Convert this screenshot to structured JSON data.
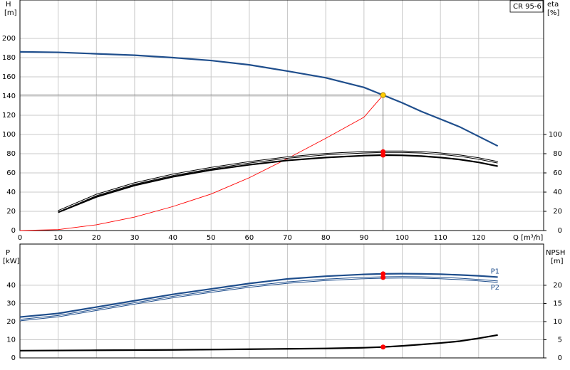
{
  "chart_data": [
    {
      "type": "line",
      "model": "CR 95-6",
      "y_label": "H",
      "y_unit": "[m]",
      "y2_label": "eta",
      "y2_unit": "[%]",
      "x_label": "Q [m³/h]",
      "xlim": [
        0,
        137
      ],
      "xticks": [
        0,
        10,
        20,
        30,
        40,
        50,
        60,
        70,
        80,
        90,
        100,
        110,
        120
      ],
      "ylim": [
        0,
        240
      ],
      "yticks": [
        0,
        20,
        40,
        60,
        80,
        100,
        120,
        140,
        160,
        180,
        200
      ],
      "y2lim": [
        0,
        240
      ],
      "y2ticks": [
        0,
        20,
        40,
        60,
        80,
        100
      ],
      "grid": true,
      "operating_x": 95,
      "crosshair": true,
      "x": [
        0,
        10,
        20,
        30,
        40,
        50,
        60,
        70,
        80,
        90,
        95,
        100,
        105,
        110,
        115,
        120,
        125
      ],
      "series": [
        {
          "color": "#1f4e8c",
          "style": "thick",
          "dot_color": "#ffcc00",
          "values": [
            186,
            185.5,
            184,
            182.5,
            180,
            177,
            172.5,
            166,
            159,
            149,
            141,
            133,
            124,
            116,
            108,
            98,
            88
          ]
        },
        {
          "color": "#ff0000",
          "style": "thin",
          "values": [
            0,
            1,
            6,
            14,
            25,
            38,
            55,
            75,
            96,
            118,
            141,
            null,
            null,
            null,
            null,
            null,
            null
          ]
        },
        {
          "color": "#000000",
          "style": "double",
          "axis": "y2",
          "dot_color": "#ff0000",
          "values": [
            null,
            20,
            37,
            49,
            58,
            65,
            71,
            76,
            79.5,
            81.5,
            82,
            82,
            81.5,
            80,
            78,
            75,
            71
          ]
        },
        {
          "color": "#000000",
          "style": "thick",
          "axis": "y2",
          "dot_color": "#ff0000",
          "values": [
            null,
            19,
            35,
            47,
            56,
            63,
            68.5,
            73,
            76,
            78,
            78.5,
            78.3,
            77.5,
            76,
            74,
            71,
            67
          ]
        }
      ]
    },
    {
      "type": "line",
      "y_label": "P",
      "y_unit": "[kW]",
      "y2_label": "NPSH",
      "y2_unit": "[m]",
      "xlim": [
        0,
        137
      ],
      "xticks": [
        0,
        10,
        20,
        30,
        40,
        50,
        60,
        70,
        80,
        90,
        100,
        110,
        120
      ],
      "ylim": [
        0,
        62.7
      ],
      "yticks": [
        0,
        10,
        20,
        30,
        40
      ],
      "y2lim": [
        0,
        31.35
      ],
      "y2ticks": [
        0,
        5,
        10,
        15,
        20
      ],
      "grid": true,
      "operating_x": 95,
      "x": [
        0,
        10,
        20,
        30,
        40,
        50,
        60,
        70,
        80,
        90,
        95,
        100,
        105,
        110,
        115,
        120,
        125
      ],
      "series": [
        {
          "name": "P1",
          "color": "#1f4e8c",
          "style": "thick",
          "dot_color": "#ff0000",
          "values": [
            22.5,
            24.5,
            28,
            31.5,
            35,
            38,
            41,
            43.5,
            45,
            46,
            46.3,
            46.4,
            46.3,
            46.1,
            45.7,
            45.2,
            44.5
          ]
        },
        {
          "name": "P2",
          "color": "#1f4e8c",
          "style": "double",
          "dot_color": "#ff0000",
          "values": [
            20.8,
            23,
            26.5,
            30,
            33.5,
            36.5,
            39.3,
            41.5,
            43,
            44,
            44.3,
            44.4,
            44.3,
            44,
            43.5,
            42.8,
            42
          ]
        },
        {
          "color": "#000000",
          "style": "thick",
          "axis": "y2",
          "dot_color": "#ff0000",
          "values": [
            2,
            2.05,
            2.1,
            2.15,
            2.2,
            2.3,
            2.4,
            2.5,
            2.6,
            2.8,
            3,
            3.3,
            3.7,
            4.1,
            4.6,
            5.4,
            6.3
          ]
        }
      ]
    }
  ]
}
